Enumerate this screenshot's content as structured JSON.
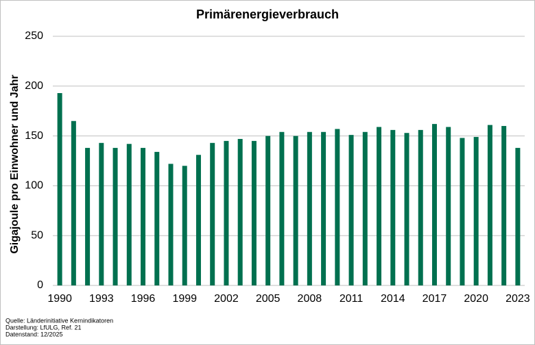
{
  "chart_data": {
    "type": "bar",
    "title": "Primärenergieverbrauch",
    "y_label": "Gigajoule pro Einwohner und Jahr",
    "categories": [
      "1990",
      null,
      null,
      "1993",
      null,
      null,
      "1996",
      null,
      null,
      "1999",
      null,
      null,
      "2002",
      null,
      null,
      "2005",
      null,
      null,
      "2008",
      null,
      null,
      "2011",
      null,
      null,
      "2014",
      null,
      null,
      "2017",
      null,
      null,
      "2020",
      null,
      null,
      "2023"
    ],
    "values": [
      193,
      165,
      138,
      143,
      138,
      142,
      138,
      134,
      122,
      120,
      131,
      143,
      145,
      147,
      145,
      150,
      154,
      150,
      154,
      154,
      157,
      151,
      154,
      159,
      156,
      153,
      156,
      162,
      159,
      148,
      149,
      161,
      160,
      138
    ],
    "color": "#00704f",
    "ylim": [
      0,
      250
    ],
    "yticks": [
      0,
      50,
      100,
      150,
      200,
      250
    ],
    "grid": true,
    "notes": [
      "Quelle:  Länderinitiative  Kernindikatoren",
      "Darstellung:  LfULG, Ref. 21",
      "Datenstand:  12/2025"
    ]
  }
}
